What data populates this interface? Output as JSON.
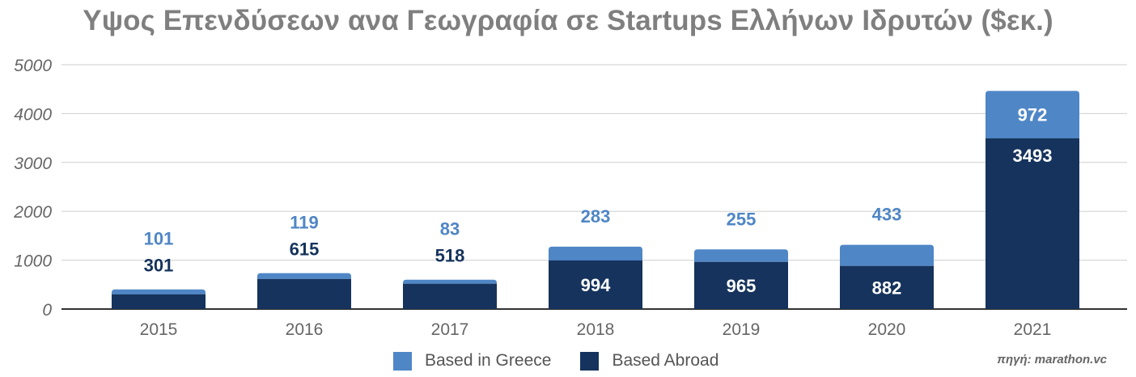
{
  "title": "Υψος Επενδύσεων ανα Γεωγραφία σε Startups Ελλήνων Ιδρυτών ($εκ.)",
  "source": "πηγή: marathon.vc",
  "legend": {
    "greece": "Based in Greece",
    "abroad": "Based Abroad"
  },
  "colors": {
    "greece": "#4f86c6",
    "abroad": "#15335c",
    "title": "#7f7f7f",
    "grid": "#cfcfcf",
    "axis_text": "#666666"
  },
  "chart_data": {
    "type": "bar",
    "stacked": true,
    "title": "Υψος Επενδύσεων ανα Γεωγραφία σε Startups Ελλήνων Ιδρυτών ($εκ.)",
    "categories": [
      "2015",
      "2016",
      "2017",
      "2018",
      "2019",
      "2020",
      "2021"
    ],
    "series": [
      {
        "name": "Based Abroad",
        "values": [
          301,
          615,
          518,
          994,
          965,
          882,
          3493
        ]
      },
      {
        "name": "Based in Greece",
        "values": [
          101,
          119,
          83,
          283,
          255,
          433,
          972
        ]
      }
    ],
    "ylim": [
      0,
      5000
    ],
    "yticks": [
      0,
      1000,
      2000,
      3000,
      4000,
      5000
    ],
    "grid": true,
    "legend_position": "bottom"
  }
}
